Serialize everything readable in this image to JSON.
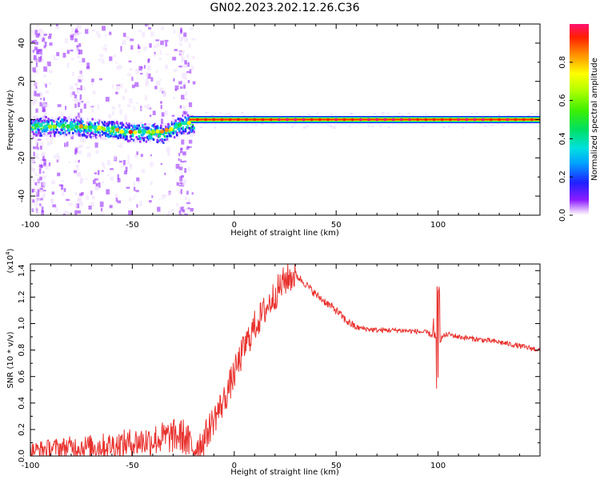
{
  "title": "GN02.2023.202.12.26.C36",
  "chart_data": [
    {
      "type": "heatmap",
      "title": "GN02.2023.202.12.26.C36",
      "xlabel": "Height of straight line (km)",
      "ylabel": "Frequency (Hz)",
      "xlim": [
        -100,
        150
      ],
      "ylim": [
        -50,
        50
      ],
      "x_ticks": [
        "-100",
        "-50",
        "0",
        "50",
        "100"
      ],
      "x_tick_values": [
        -100,
        -50,
        0,
        50,
        100
      ],
      "y_ticks": [
        "-40",
        "-20",
        "0",
        "20",
        "40"
      ],
      "y_tick_values": [
        -40,
        -20,
        0,
        20,
        40
      ],
      "colorbar": {
        "label": "Normalized spectral amplitude",
        "range": [
          0,
          1
        ],
        "ticks": [
          "0.0",
          "0.2",
          "0.4",
          "0.6",
          "0.8"
        ],
        "tick_values": [
          0.0,
          0.2,
          0.4,
          0.6,
          0.8
        ],
        "colormap": "rainbow (violet to red)"
      },
      "ridge": {
        "description": "dominant spectral line (frequency vs height)",
        "x": [
          -100,
          -90,
          -80,
          -70,
          -60,
          -55,
          -50,
          -45,
          -40,
          -35,
          -30,
          -25,
          -20,
          -15,
          -10,
          0,
          10,
          50,
          100,
          150
        ],
        "y": [
          -3,
          -3,
          -3,
          -4,
          -5,
          -6,
          -6,
          -6,
          -6,
          -7,
          -4,
          -2,
          -2,
          0,
          0,
          0,
          0,
          0,
          0,
          0
        ]
      },
      "noise_columns_x": [
        -98,
        -95,
        -77,
        -26
      ]
    },
    {
      "type": "line",
      "xlabel": "Height of straight line (km)",
      "ylabel": "SNR (10 * v/v)",
      "y_multiplier": "(x10^4)",
      "y_multiplier_base": "(x10",
      "y_multiplier_exp": "4",
      "y_multiplier_close": ")",
      "xlim": [
        -100,
        150
      ],
      "ylim": [
        0,
        1.45
      ],
      "x_ticks": [
        "-100",
        "-50",
        "0",
        "50",
        "100"
      ],
      "x_tick_values": [
        -100,
        -50,
        0,
        50,
        100
      ],
      "y_ticks": [
        "0.0",
        "0.2",
        "0.4",
        "0.6",
        "0.8",
        "1.0",
        "1.2",
        "1.4"
      ],
      "y_tick_values": [
        0.0,
        0.2,
        0.4,
        0.6,
        0.8,
        1.0,
        1.2,
        1.4
      ],
      "series": [
        {
          "color": "#e8322e",
          "x": [
            -100,
            -90,
            -80,
            -70,
            -60,
            -50,
            -40,
            -30,
            -25,
            -20,
            -15,
            -10,
            -5,
            0,
            5,
            10,
            15,
            20,
            25,
            30,
            35,
            40,
            45,
            50,
            55,
            60,
            65,
            70,
            80,
            90,
            95,
            98,
            100,
            102,
            105,
            110,
            120,
            130,
            140,
            150
          ],
          "y": [
            0.04,
            0.06,
            0.07,
            0.07,
            0.08,
            0.1,
            0.12,
            0.15,
            0.15,
            0.05,
            0.12,
            0.28,
            0.42,
            0.62,
            0.82,
            0.98,
            1.1,
            1.22,
            1.33,
            1.37,
            1.3,
            1.22,
            1.16,
            1.1,
            1.02,
            0.97,
            0.96,
            0.95,
            0.95,
            0.94,
            0.93,
            0.9,
            0.85,
            0.9,
            0.92,
            0.9,
            0.88,
            0.86,
            0.83,
            0.8
          ]
        }
      ],
      "annotations": [
        {
          "x": 100,
          "y_min": 0.45,
          "y_max": 1.28
        }
      ]
    }
  ]
}
